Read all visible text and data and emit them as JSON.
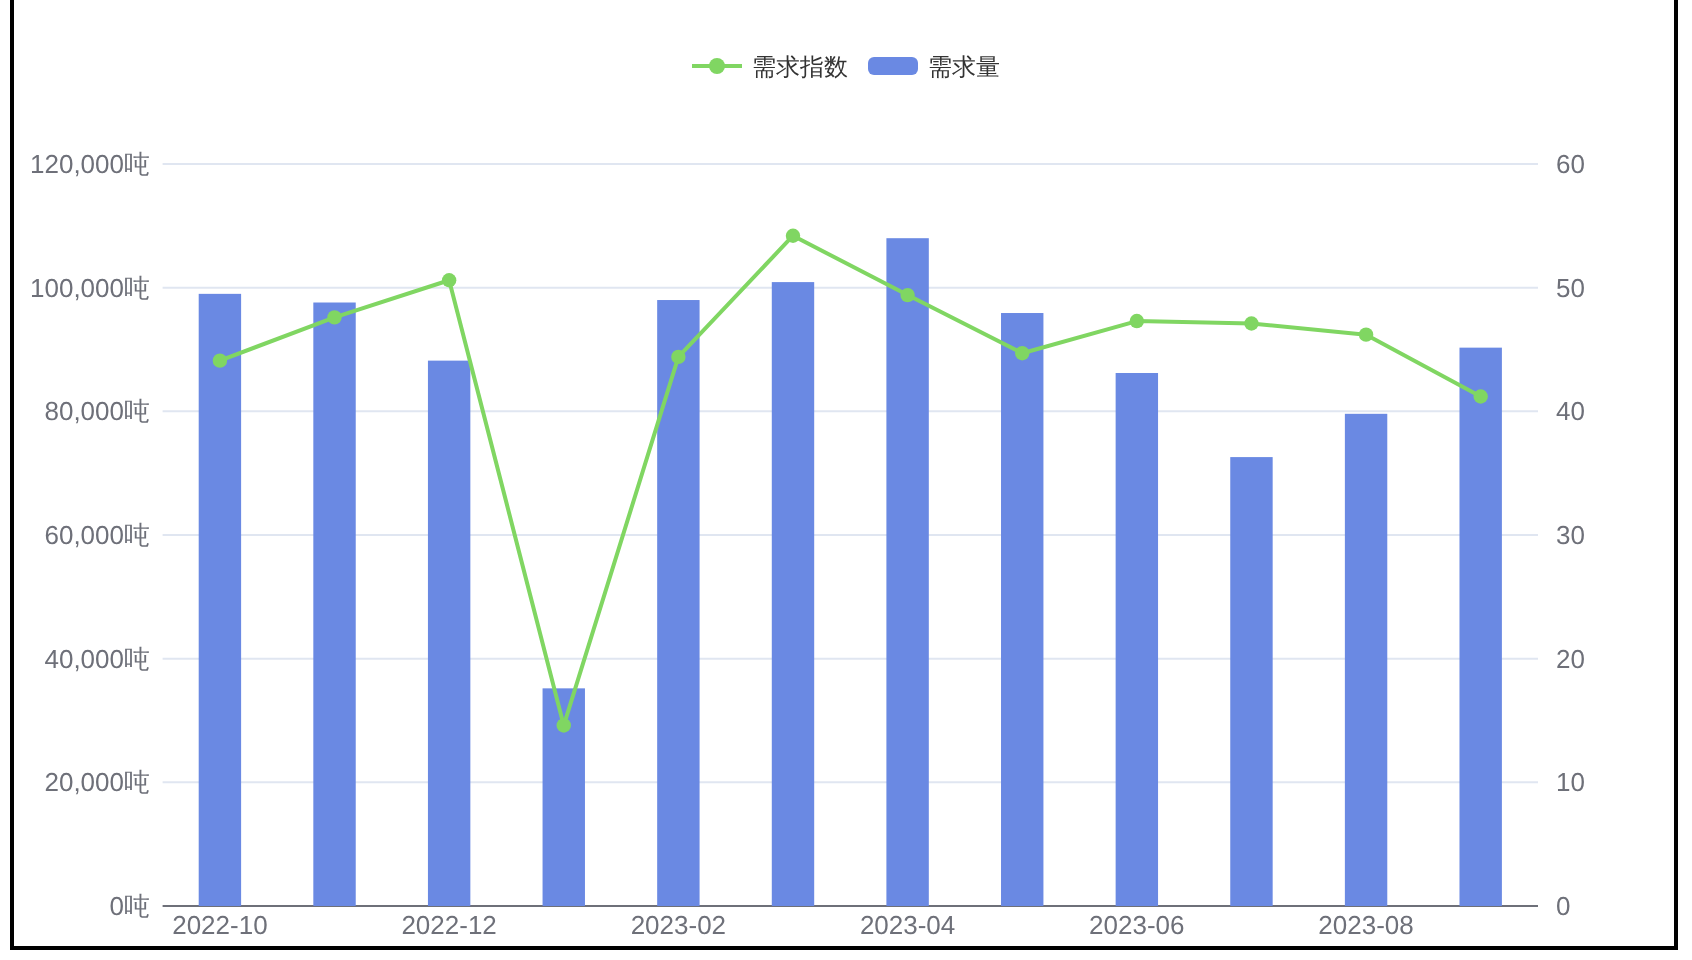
{
  "chart_data": {
    "type": "bar",
    "categories": [
      "2022-10",
      null,
      "2022-12",
      null,
      "2023-02",
      null,
      "2023-04",
      null,
      "2023-06",
      null,
      "2023-08",
      null
    ],
    "series": [
      {
        "name": "需求指数",
        "type": "line",
        "axis": "y2",
        "color": "#80d662",
        "values": [
          44.1,
          47.6,
          50.6,
          14.6,
          44.4,
          54.2,
          49.4,
          44.7,
          47.3,
          47.1,
          46.2,
          41.2
        ]
      },
      {
        "name": "需求量",
        "color": "#6a89e3",
        "values": [
          99000,
          97600,
          88200,
          35200,
          98000,
          100900,
          108000,
          95900,
          86200,
          72600,
          79600,
          90300
        ]
      }
    ],
    "ylim": [
      0,
      120000
    ],
    "yticks": [
      {
        "value": 0,
        "label": "0吨"
      },
      {
        "value": 20000,
        "label": "20,000吨"
      },
      {
        "value": 40000,
        "label": "40,000吨"
      },
      {
        "value": 60000,
        "label": "60,000吨"
      },
      {
        "value": 80000,
        "label": "80,000吨"
      },
      {
        "value": 100000,
        "label": "100,000吨"
      },
      {
        "value": 120000,
        "label": "120,000吨"
      }
    ],
    "y2lim": [
      0,
      60
    ],
    "y2ticks": [
      0,
      10,
      20,
      30,
      40,
      50,
      60
    ],
    "grid": "y",
    "legend": "top",
    "marker": "circle"
  }
}
